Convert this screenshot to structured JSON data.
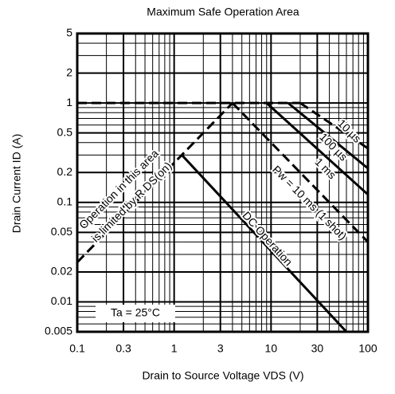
{
  "chart_data": {
    "type": "line",
    "title": "Maximum Safe Operation Area",
    "xlabel": "Drain to Source Voltage VDS (V)",
    "ylabel": "Drain Current ID (A)",
    "xscale": "log",
    "yscale": "log",
    "grid": true,
    "color": "#000000",
    "xlim": [
      0.1,
      100
    ],
    "ylim": [
      0.005,
      5
    ],
    "xticks": [
      0.1,
      0.3,
      1,
      3,
      10,
      30,
      100
    ],
    "yticks": [
      0.005,
      0.01,
      0.02,
      0.05,
      0.1,
      0.2,
      0.5,
      1,
      2,
      5
    ],
    "lines": [
      {
        "x": [
          0.1,
          4
        ],
        "y": [
          0.025,
          1
        ],
        "dashed": true
      },
      {
        "x": [
          0.1,
          20
        ],
        "y": [
          1,
          1
        ],
        "dashed": true
      },
      {
        "x": [
          1.2,
          60
        ],
        "y": [
          0.3,
          0.005
        ],
        "dashed": false
      },
      {
        "x": [
          4,
          100
        ],
        "y": [
          1,
          0.04
        ],
        "dashed": true
      },
      {
        "x": [
          9,
          100
        ],
        "y": [
          1,
          0.12
        ],
        "dashed": false
      },
      {
        "x": [
          15,
          100
        ],
        "y": [
          1,
          0.22
        ],
        "dashed": false
      },
      {
        "x": [
          20,
          100
        ],
        "y": [
          1,
          0.35
        ],
        "dashed": true
      }
    ],
    "annotations": [
      "Operation in this area",
      "is limited by R DS(on)",
      "DC Operation",
      "10 µs",
      "100 µs",
      "1 ms",
      "Pw = 10 ms (1 shot)",
      "Ta = 25°C"
    ]
  }
}
